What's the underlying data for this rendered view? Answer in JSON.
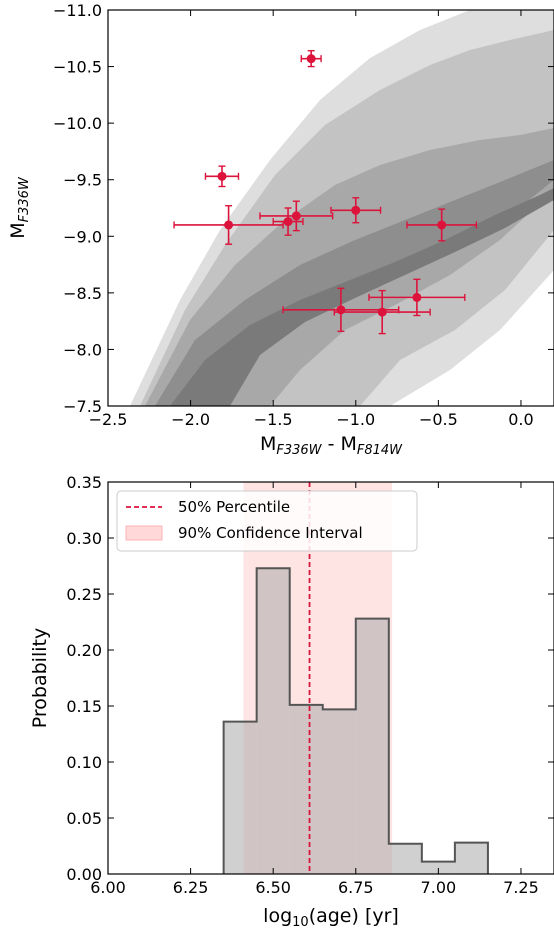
{
  "chart_data": [
    {
      "type": "scatter",
      "xlabel_main": "M",
      "xlabel_sub1": "F336W",
      "xlabel_mid": " - M",
      "xlabel_sub2": "F814W",
      "ylabel_main": "M",
      "ylabel_sub": "F336W",
      "xlim": [
        -2.5,
        0.2
      ],
      "ylim": [
        -7.5,
        -11.0
      ],
      "y_inverted": true,
      "xticks": [
        {
          "value": -2.5,
          "label": "−2.5"
        },
        {
          "value": -2.0,
          "label": "−2.0"
        },
        {
          "value": -1.5,
          "label": "−1.5"
        },
        {
          "value": -1.0,
          "label": "−1.0"
        },
        {
          "value": -0.5,
          "label": "−0.5"
        },
        {
          "value": 0.0,
          "label": "0.0"
        }
      ],
      "yticks": [
        {
          "value": -11.0,
          "label": "−11.0"
        },
        {
          "value": -10.5,
          "label": "−10.5"
        },
        {
          "value": -10.0,
          "label": "−10.0"
        },
        {
          "value": -9.5,
          "label": "−9.5"
        },
        {
          "value": -9.0,
          "label": "−9.0"
        },
        {
          "value": -8.5,
          "label": "−8.5"
        },
        {
          "value": -8.0,
          "label": "−8.0"
        },
        {
          "value": -7.5,
          "label": "−7.5"
        }
      ],
      "background": "grey contour density of model population",
      "point_color": "#dc143c",
      "points": [
        {
          "x": -1.27,
          "y": -10.57,
          "xerr": 0.06,
          "yerr": 0.07
        },
        {
          "x": -1.81,
          "y": -9.53,
          "xerr": 0.1,
          "yerr": 0.09
        },
        {
          "x": -1.77,
          "y": -9.1,
          "xerr": 0.33,
          "yerr": 0.17
        },
        {
          "x": -1.41,
          "y": -9.13,
          "xerr": 0.09,
          "yerr": 0.12
        },
        {
          "x": -1.36,
          "y": -9.18,
          "xerr": 0.22,
          "yerr": 0.13
        },
        {
          "x": -1.0,
          "y": -9.23,
          "xerr": 0.15,
          "yerr": 0.11
        },
        {
          "x": -0.48,
          "y": -9.1,
          "xerr": 0.21,
          "yerr": 0.14
        },
        {
          "x": -1.09,
          "y": -8.35,
          "xerr": 0.35,
          "yerr": 0.19
        },
        {
          "x": -0.84,
          "y": -8.33,
          "xerr": 0.29,
          "yerr": 0.19
        },
        {
          "x": -0.63,
          "y": -8.46,
          "xerr": 0.29,
          "yerr": 0.16
        }
      ]
    },
    {
      "type": "bar",
      "histtype": "step-filled",
      "xlabel_pre": "log",
      "xlabel_sub": "10",
      "xlabel_post": "(age) [yr]",
      "ylabel": "Probability",
      "xlim": [
        6.0,
        7.35
      ],
      "ylim": [
        0.0,
        0.35
      ],
      "xticks": [
        {
          "value": 6.0,
          "label": "6.00"
        },
        {
          "value": 6.25,
          "label": "6.25"
        },
        {
          "value": 6.5,
          "label": "6.50"
        },
        {
          "value": 6.75,
          "label": "6.75"
        },
        {
          "value": 7.0,
          "label": "7.00"
        },
        {
          "value": 7.25,
          "label": "7.25"
        }
      ],
      "yticks": [
        {
          "value": 0.0,
          "label": "0.00"
        },
        {
          "value": 0.05,
          "label": "0.05"
        },
        {
          "value": 0.1,
          "label": "0.10"
        },
        {
          "value": 0.15,
          "label": "0.15"
        },
        {
          "value": 0.2,
          "label": "0.20"
        },
        {
          "value": 0.25,
          "label": "0.25"
        },
        {
          "value": 0.3,
          "label": "0.30"
        },
        {
          "value": 0.35,
          "label": "0.35"
        }
      ],
      "bin_edges": [
        6.35,
        6.45,
        6.55,
        6.65,
        6.75,
        6.85,
        6.95,
        7.05,
        7.15
      ],
      "values": [
        0.136,
        0.273,
        0.151,
        0.147,
        0.228,
        0.027,
        0.011,
        0.028
      ],
      "median": 6.61,
      "ci90": [
        6.41,
        6.86
      ],
      "median_color": "#dc143c",
      "ci_color": "#ffb3b3",
      "hist_fill": "#a9a9a9",
      "hist_edge": "#555555",
      "legend_position": "top-left",
      "legend": [
        {
          "label": "50% Percentile",
          "style": "dashed-line"
        },
        {
          "label": "90% Confidence Interval",
          "style": "filled-patch"
        }
      ]
    }
  ]
}
